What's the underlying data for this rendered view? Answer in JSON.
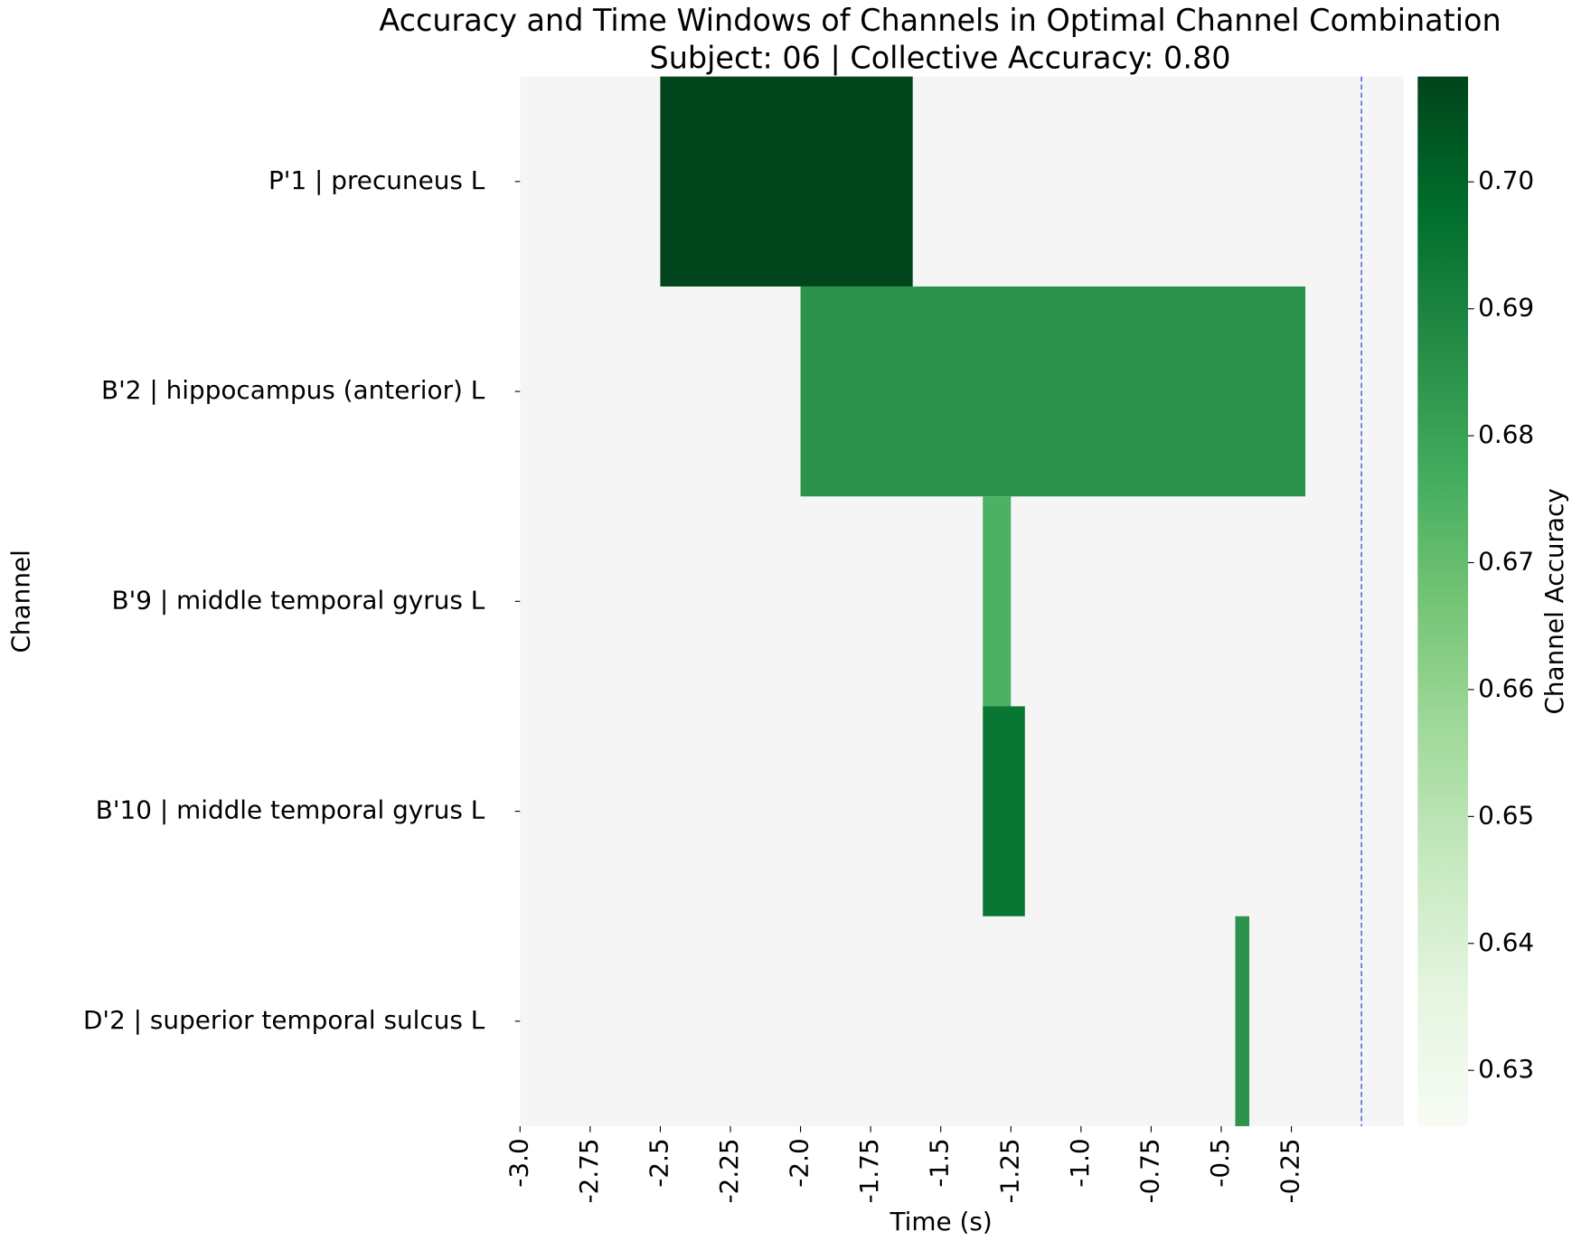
{
  "chart_data": {
    "type": "timewindow-heatmap",
    "title": "Accuracy and Time Windows of Channels in Optimal Channel Combination",
    "subtitle": "Subject: 06 | Collective Accuracy: 0.80",
    "x_label": "Time (s)",
    "y_label": "Channel",
    "colorbar_label": "Channel Accuracy",
    "categories": [
      "P'1 | precuneus L",
      "B'2 | hippocampus (anterior) L",
      "B'9 | middle temporal gyrus L",
      "B'10 | middle temporal gyrus L",
      "D'2 | superior temporal sulcus L"
    ],
    "windows": [
      {
        "start": -2.5,
        "end": -1.6,
        "value": 0.708
      },
      {
        "start": -2.0,
        "end": -0.2,
        "value": 0.685
      },
      {
        "start": -1.35,
        "end": -1.25,
        "value": 0.675
      },
      {
        "start": -1.35,
        "end": -1.2,
        "value": 0.695
      },
      {
        "start": -0.45,
        "end": -0.4,
        "value": 0.685
      }
    ],
    "xlim": [
      -3,
      0.15
    ],
    "xticks": [
      {
        "value": -3,
        "label": "-3.0"
      },
      -2.75,
      -2.5,
      -2.25,
      {
        "value": -2,
        "label": "-2.0"
      },
      -1.75,
      -1.5,
      -1.25,
      {
        "value": -1,
        "label": "-1.0"
      },
      -0.75,
      -0.5,
      -0.25
    ],
    "reference_line": 0,
    "reference_color": "#3a4fd8",
    "clim": [
      0.6256,
      0.7083
    ],
    "cticks": [
      0.63,
      0.64,
      0.65,
      0.66,
      0.67,
      0.68,
      0.69,
      {
        "value": 0.7,
        "label": "0.70"
      }
    ],
    "colormap": [
      "#f7fcf5",
      "#e5f5e0",
      "#c7e9c0",
      "#a1d99b",
      "#74c476",
      "#41ab5d",
      "#238b45",
      "#006d2c",
      "#00441b"
    ],
    "background": "#f5f5f5"
  }
}
